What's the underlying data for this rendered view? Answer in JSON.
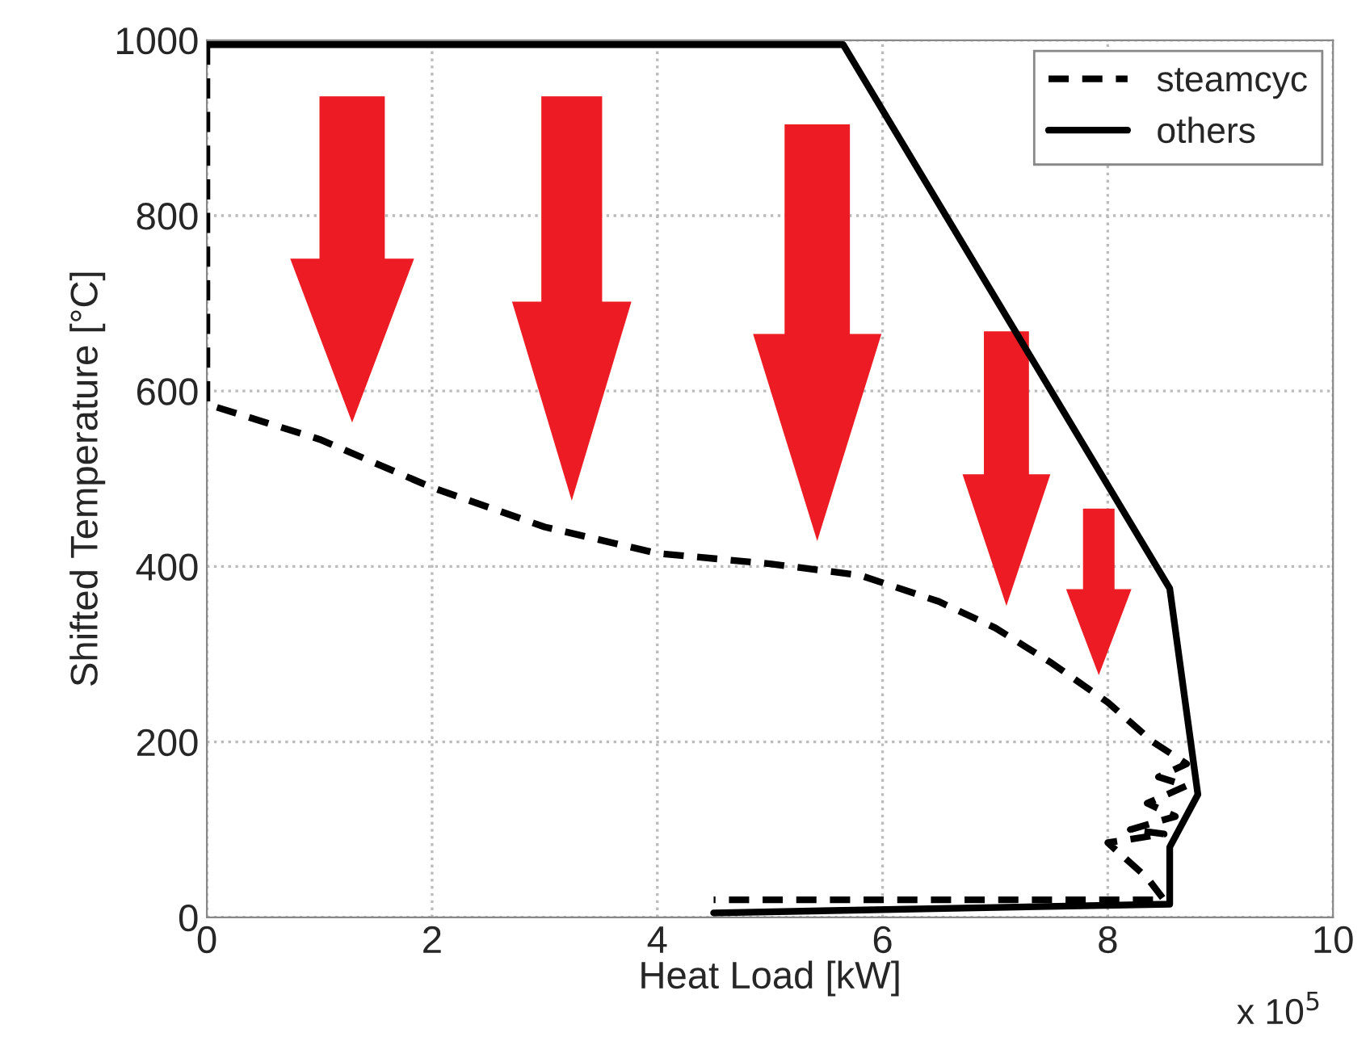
{
  "chart_data": {
    "type": "line",
    "xlabel": "Heat Load [kW]",
    "ylabel": "Shifted Temperature [°C]",
    "series": [
      {
        "name": "steamcyc",
        "color": "#000000",
        "line_style": "dashed",
        "x": [
          0,
          0,
          1,
          2,
          3,
          4,
          5,
          5.8,
          6.5,
          7,
          7.5,
          8,
          8.4,
          8.7,
          8.45,
          8.7,
          8.35,
          8.6,
          8.2,
          8.5,
          8.0,
          8.35,
          8.5,
          4.5
        ],
        "values": [
          995,
          585,
          545,
          490,
          445,
          415,
          403,
          390,
          360,
          330,
          290,
          245,
          200,
          175,
          160,
          150,
          130,
          115,
          100,
          95,
          85,
          45,
          20,
          20
        ]
      },
      {
        "name": "others",
        "color": "#000000",
        "line_style": "solid",
        "x": [
          4.5,
          8.55,
          8.55,
          8.8,
          8.55,
          5.65,
          0
        ],
        "values": [
          5,
          15,
          80,
          140,
          375,
          995,
          995
        ]
      }
    ],
    "xlim": [
      0,
      10
    ],
    "ylim": [
      0,
      1000
    ],
    "xticks": [
      0,
      2,
      4,
      6,
      8,
      10
    ],
    "yticks": [
      0,
      200,
      400,
      600,
      800,
      1000
    ],
    "grid": true,
    "legend": "top right",
    "annotations": [
      "x 10$^{5}$"
    ]
  }
}
